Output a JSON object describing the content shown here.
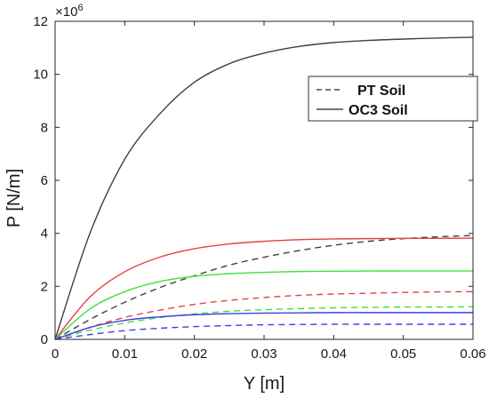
{
  "chart_data": {
    "type": "line",
    "xlabel": "Y [m]",
    "ylabel": "P [N/m]",
    "exponent_label": "×10",
    "exponent_power": "6",
    "xlim": [
      0,
      0.06
    ],
    "ylim": [
      0,
      12
    ],
    "xticks": [
      "0",
      "0.01",
      "0.02",
      "0.03",
      "0.04",
      "0.05",
      "0.06"
    ],
    "xtick_values": [
      0,
      0.01,
      0.02,
      0.03,
      0.04,
      0.05,
      0.06
    ],
    "yticks": [
      "0",
      "2",
      "4",
      "6",
      "8",
      "10",
      "12"
    ],
    "ytick_values": [
      0,
      2,
      4,
      6,
      8,
      10,
      12
    ],
    "y_multiplier": 1000000,
    "grid": false,
    "legend_position": "top-right",
    "legend": [
      {
        "label": "PT Soil",
        "style": "dashed",
        "color": "#222222"
      },
      {
        "label": "OC3 Soil",
        "style": "solid",
        "color": "#222222"
      }
    ],
    "x": [
      0,
      0.005,
      0.01,
      0.015,
      0.02,
      0.025,
      0.03,
      0.035,
      0.04,
      0.045,
      0.05,
      0.055,
      0.06
    ],
    "series": [
      {
        "color": "#404040",
        "style": "solid",
        "values": [
          0,
          4.0,
          6.8,
          8.5,
          9.7,
          10.4,
          10.8,
          11.05,
          11.2,
          11.28,
          11.33,
          11.37,
          11.4
        ]
      },
      {
        "color": "#404040",
        "style": "dashed",
        "values": [
          0,
          0.75,
          1.4,
          1.95,
          2.4,
          2.8,
          3.1,
          3.35,
          3.55,
          3.7,
          3.8,
          3.87,
          3.92
        ]
      },
      {
        "color": "#e84040",
        "style": "solid",
        "values": [
          0,
          1.6,
          2.55,
          3.1,
          3.42,
          3.6,
          3.7,
          3.76,
          3.79,
          3.8,
          3.81,
          3.81,
          3.82
        ]
      },
      {
        "color": "#e84040",
        "style": "dashed",
        "values": [
          0,
          0.45,
          0.83,
          1.1,
          1.32,
          1.47,
          1.58,
          1.66,
          1.71,
          1.74,
          1.77,
          1.79,
          1.8
        ]
      },
      {
        "color": "#40e040",
        "style": "solid",
        "values": [
          0,
          1.15,
          1.8,
          2.18,
          2.38,
          2.48,
          2.53,
          2.56,
          2.57,
          2.58,
          2.58,
          2.58,
          2.58
        ]
      },
      {
        "color": "#40e040",
        "style": "dashed",
        "values": [
          0,
          0.35,
          0.62,
          0.82,
          0.96,
          1.06,
          1.12,
          1.16,
          1.19,
          1.21,
          1.22,
          1.22,
          1.23
        ]
      },
      {
        "color": "#4040e8",
        "style": "solid",
        "values": [
          0,
          0.45,
          0.72,
          0.85,
          0.93,
          0.97,
          0.99,
          1.0,
          1.01,
          1.01,
          1.01,
          1.01,
          1.01
        ]
      },
      {
        "color": "#4040e8",
        "style": "dashed",
        "values": [
          0,
          0.18,
          0.33,
          0.42,
          0.48,
          0.52,
          0.55,
          0.56,
          0.57,
          0.57,
          0.57,
          0.57,
          0.57
        ]
      }
    ]
  }
}
